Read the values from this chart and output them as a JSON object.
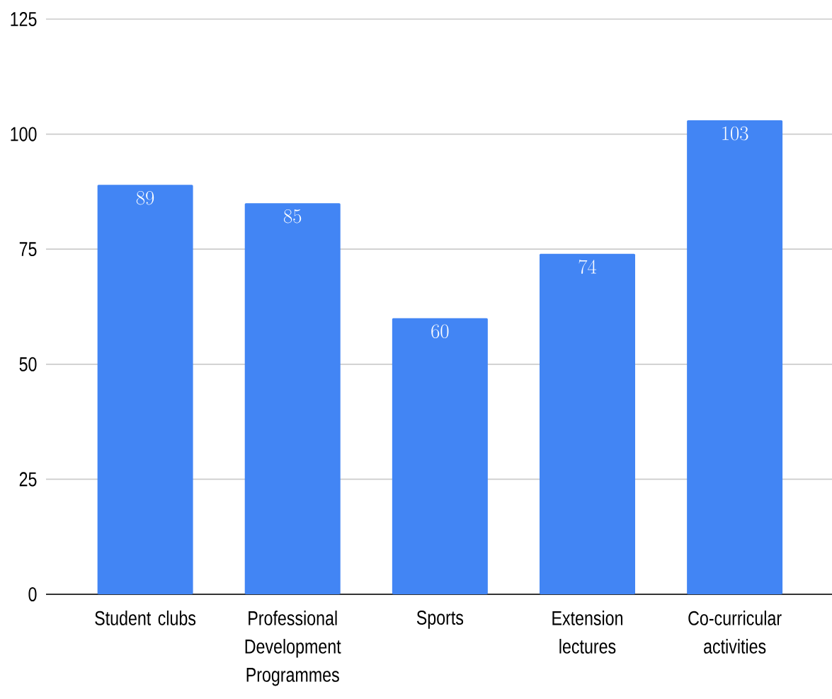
{
  "chart_data": {
    "type": "bar",
    "categories": [
      "Student clubs",
      "Professional Development Programmes",
      "Sports",
      "Extension lectures",
      "Co-curricular activities"
    ],
    "values": [
      89,
      85,
      60,
      74,
      103
    ],
    "color": "#4285f4",
    "ylim": [
      0,
      125
    ],
    "yticks": [
      0,
      25,
      50,
      75,
      100,
      125
    ],
    "grid": "y",
    "data_labels": true
  }
}
